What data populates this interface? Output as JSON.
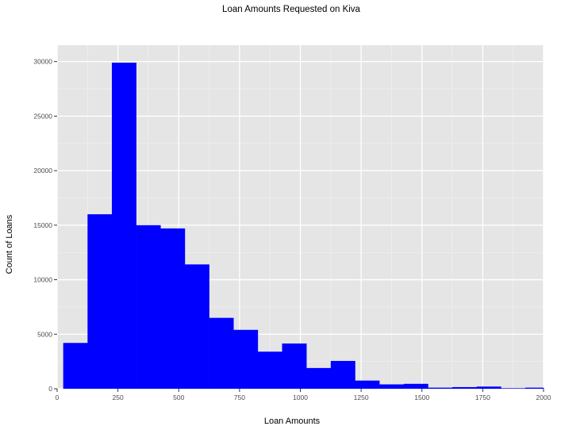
{
  "chart_data": {
    "type": "bar",
    "title": "Loan Amounts Requested on Kiva",
    "xlabel": "Loan Amounts",
    "ylabel": "Count of Loans",
    "xlim": [
      0,
      2000
    ],
    "ylim": [
      0,
      31500
    ],
    "x_ticks": [
      0,
      250,
      500,
      750,
      1000,
      1250,
      1500,
      1750,
      2000
    ],
    "y_ticks": [
      0,
      5000,
      10000,
      15000,
      20000,
      25000,
      30000
    ],
    "bin_edges": [
      25,
      125,
      225,
      325,
      425,
      525,
      625,
      725,
      825,
      925,
      1025,
      1125,
      1225,
      1325,
      1425,
      1525,
      1625,
      1725,
      1825,
      1925,
      2000
    ],
    "values": [
      4200,
      16000,
      29900,
      15000,
      14700,
      11400,
      6500,
      5400,
      3400,
      4150,
      1900,
      2550,
      750,
      400,
      450,
      100,
      150,
      200,
      50,
      100
    ],
    "bar_color": "#0000ff",
    "panel_background": "#e5e5e5",
    "grid": true,
    "legend": "none"
  }
}
